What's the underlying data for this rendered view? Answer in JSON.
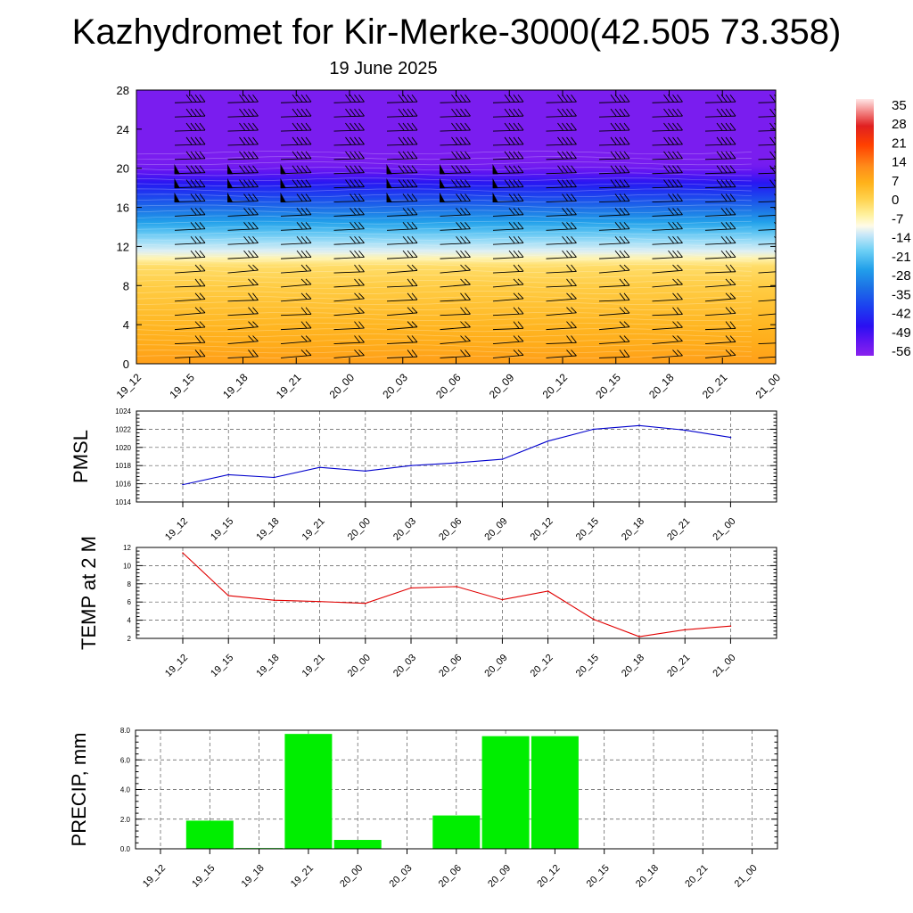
{
  "title": "Kazhydromet for Kir-Merke-3000(42.505 73.358)",
  "subtitle": "19 June 2025",
  "chart_data": [
    {
      "type": "heatmap",
      "name": "cross-section",
      "x_categories": [
        "19_12",
        "19_15",
        "19_18",
        "19_21",
        "20_00",
        "20_03",
        "20_06",
        "20_09",
        "20_12",
        "20_15",
        "20_18",
        "20_21",
        "21_00"
      ],
      "y_ticks": [
        0,
        4,
        8,
        12,
        16,
        20,
        24,
        28
      ],
      "ylim": [
        0,
        28
      ],
      "temperature_profile": {
        "heights": [
          0,
          2,
          4,
          6,
          8,
          10,
          10.8,
          11.5,
          12.5,
          13.5,
          14.5,
          15.5,
          16.5,
          17.5,
          18.5,
          19.5,
          20.2,
          21,
          28
        ],
        "values": [
          7,
          5,
          3,
          1,
          -1,
          -4,
          -9,
          -14,
          -18,
          -23,
          -28,
          -33,
          -38,
          -43,
          -48,
          -54,
          -57,
          -58,
          -58
        ]
      },
      "colorbar": {
        "labels": [
          "35",
          "28",
          "21",
          "14",
          "7",
          "0",
          "-7",
          "-14",
          "-21",
          "-28",
          "-35",
          "-42",
          "-49",
          "-56"
        ],
        "stops": [
          {
            "v": 35,
            "c": "#ffe6e6"
          },
          {
            "v": 30,
            "c": "#f28080"
          },
          {
            "v": 25,
            "c": "#e02020"
          },
          {
            "v": 18,
            "c": "#ff4000"
          },
          {
            "v": 10,
            "c": "#ff8c1a"
          },
          {
            "v": 4,
            "c": "#ffb21a"
          },
          {
            "v": -2,
            "c": "#ffd24d"
          },
          {
            "v": -8,
            "c": "#fff2a0"
          },
          {
            "v": -12,
            "c": "#fffbe8"
          },
          {
            "v": -15,
            "c": "#cde9f8"
          },
          {
            "v": -21,
            "c": "#6ed0f5"
          },
          {
            "v": -28,
            "c": "#22a0ea"
          },
          {
            "v": -35,
            "c": "#1c6fe6"
          },
          {
            "v": -42,
            "c": "#1c3ff0"
          },
          {
            "v": -49,
            "c": "#2a10f2"
          },
          {
            "v": -54,
            "c": "#5a14f2"
          },
          {
            "v": -60,
            "c": "#8a22ee"
          }
        ]
      },
      "wind_barbs": "columns at each 3-hour step, rows every ~1.5 km; pennants at 17-20 km for 19_15, 19_18, 19_21, 20_03, 20_06, 20_09"
    },
    {
      "type": "line",
      "ylabel": "PMSL",
      "categories": [
        "19_12",
        "19_15",
        "19_18",
        "19_21",
        "20_00",
        "20_03",
        "20_06",
        "20_09",
        "20_12",
        "20_15",
        "20_18",
        "20_21",
        "21_00"
      ],
      "values": [
        1015.9,
        1017.0,
        1016.7,
        1017.8,
        1017.4,
        1018.0,
        1018.3,
        1018.7,
        1020.7,
        1022.0,
        1022.4,
        1021.9,
        1021.1
      ],
      "ylim": [
        1014,
        1024
      ],
      "yticks": [
        1014,
        1016,
        1018,
        1020,
        1022,
        1024
      ],
      "color": "#0000cc",
      "grid": true
    },
    {
      "type": "line",
      "ylabel": "TEMP at 2 M",
      "categories": [
        "19_12",
        "19_15",
        "19_18",
        "19_21",
        "20_00",
        "20_03",
        "20_06",
        "20_09",
        "20_12",
        "20_15",
        "20_18",
        "20_21",
        "21_00"
      ],
      "values": [
        11.4,
        6.7,
        6.2,
        6.05,
        5.85,
        7.55,
        7.7,
        6.25,
        7.2,
        4.1,
        2.2,
        2.95,
        3.35
      ],
      "ylim": [
        2,
        12
      ],
      "yticks": [
        2,
        4,
        6,
        8,
        10,
        12
      ],
      "color": "#e00000",
      "grid": true
    },
    {
      "type": "bar",
      "ylabel": "PRECIP, mm",
      "categories": [
        "19_12",
        "19_15",
        "19_18",
        "19_21",
        "20_00",
        "20_03",
        "20_06",
        "20_09",
        "20_12",
        "20_15",
        "20_18",
        "20_21",
        "21_00"
      ],
      "values": [
        0,
        1.9,
        0.05,
        7.75,
        0.6,
        0,
        2.25,
        7.6,
        7.6,
        0,
        0,
        0,
        0
      ],
      "ylim": [
        0,
        8
      ],
      "yticks": [
        "0.0",
        "2.0",
        "4.0",
        "6.0",
        "8.0"
      ],
      "color": "#00ee00",
      "grid": true
    }
  ]
}
